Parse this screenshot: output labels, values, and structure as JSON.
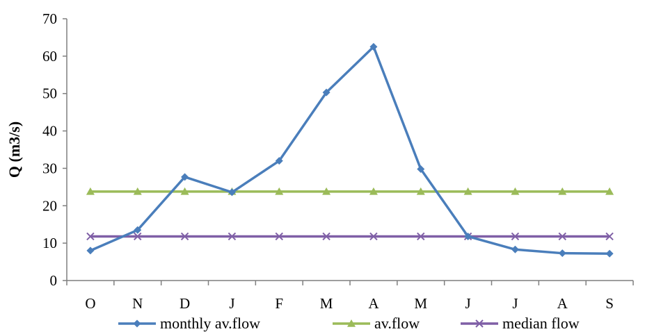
{
  "chart_data": {
    "type": "line",
    "title": "",
    "xlabel": "",
    "ylabel": "Q (m3/s)",
    "ylim": [
      0,
      70
    ],
    "yticks": [
      0,
      10,
      20,
      30,
      40,
      50,
      60,
      70
    ],
    "categories": [
      "O",
      "N",
      "D",
      "J",
      "F",
      "M",
      "A",
      "M",
      "J",
      "J",
      "A",
      "S"
    ],
    "grid": false,
    "legend_position": "bottom",
    "series": [
      {
        "name": "monthly av.flow",
        "color": "#4A7EBB",
        "marker": "diamond",
        "values": [
          8,
          13.5,
          27.7,
          23.6,
          32,
          50.3,
          62.5,
          29.8,
          11.8,
          8.3,
          7.3,
          7.2
        ]
      },
      {
        "name": "av.flow",
        "color": "#9BBB59",
        "marker": "triangle",
        "values": [
          23.8,
          23.8,
          23.8,
          23.8,
          23.8,
          23.8,
          23.8,
          23.8,
          23.8,
          23.8,
          23.8,
          23.8
        ]
      },
      {
        "name": "median flow",
        "color": "#7F5FA6",
        "marker": "x",
        "values": [
          11.8,
          11.8,
          11.8,
          11.8,
          11.8,
          11.8,
          11.8,
          11.8,
          11.8,
          11.8,
          11.8,
          11.8
        ]
      }
    ]
  }
}
